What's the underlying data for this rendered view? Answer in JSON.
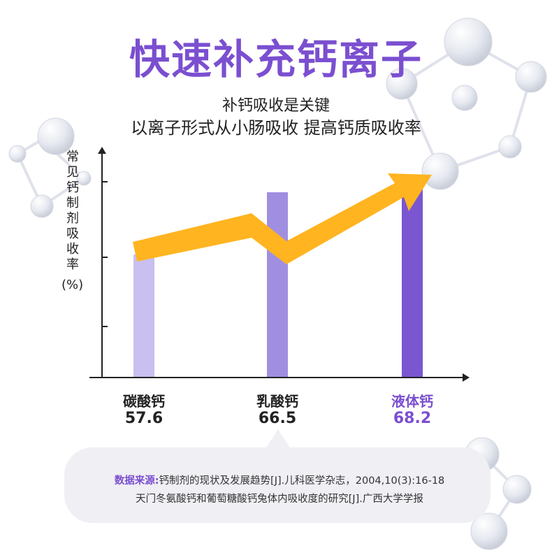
{
  "title": "快速补充钙离子",
  "subtitle_1": "补钙吸收是关键",
  "subtitle_2": "以离子形式从小肠吸收 提高钙质吸收率",
  "chart_data": {
    "type": "bar",
    "ylabel": "常见钙制剂吸收率",
    "ylabel_unit": "(%)",
    "categories": [
      "碳酸钙",
      "乳酸钙",
      "液体钙"
    ],
    "values": [
      57.6,
      66.5,
      68.2
    ],
    "value_labels": [
      "57.6",
      "66.5",
      "68.2"
    ],
    "bar_colors": [
      "#c9bff0",
      "#a08fe0",
      "#7a56d0"
    ],
    "label_colors": [
      "#222222",
      "#222222",
      "#7b4fd0"
    ],
    "ylim": [
      40,
      70
    ],
    "trend_arrow_color": "#ffb420",
    "grid": false
  },
  "source": {
    "label": "数据来源:",
    "line1": "钙制剂的现状及发展趋势[J].儿科医学杂志，2004,10(3):16-18",
    "line2": "天门冬氨酸钙和葡萄糖酸钙兔体内吸收度的研究[J].广西大学学报"
  },
  "colors": {
    "accent": "#7b4fd0"
  }
}
